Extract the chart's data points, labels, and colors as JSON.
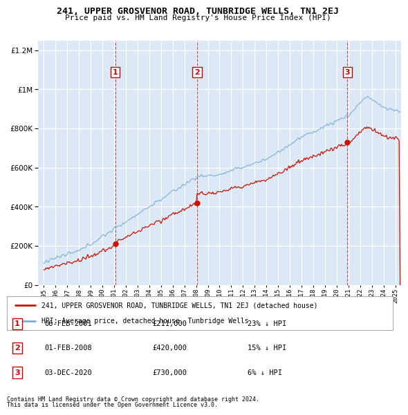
{
  "title": "241, UPPER GROSVENOR ROAD, TUNBRIDGE WELLS, TN1 2EJ",
  "subtitle": "Price paid vs. HM Land Registry's House Price Index (HPI)",
  "bg_color": "#ffffff",
  "plot_bg_color": "#dce8f5",
  "grid_color": "#ffffff",
  "hpi_color": "#7ab0d4",
  "price_color": "#cc1100",
  "vline_color": "#cc0000",
  "purchase_date_nums": [
    2001.09,
    2008.08,
    2020.92
  ],
  "purchase_prices_val": [
    211000,
    420000,
    730000
  ],
  "purchase_labels": [
    "1",
    "2",
    "3"
  ],
  "purchase_dates": [
    "06-FEB-2001",
    "01-FEB-2008",
    "03-DEC-2020"
  ],
  "purchase_prices": [
    "£211,000",
    "£420,000",
    "£730,000"
  ],
  "purchase_notes": [
    "23% ↓ HPI",
    "15% ↓ HPI",
    "6% ↓ HPI"
  ],
  "ylim": [
    0,
    1250000
  ],
  "xlim": [
    1994.5,
    2025.5
  ],
  "yticks": [
    0,
    200000,
    400000,
    600000,
    800000,
    1000000,
    1200000
  ],
  "legend_label_red": "241, UPPER GROSVENOR ROAD, TUNBRIDGE WELLS, TN1 2EJ (detached house)",
  "legend_label_blue": "HPI: Average price, detached house, Tunbridge Wells",
  "footer1": "Contains HM Land Registry data © Crown copyright and database right 2024.",
  "footer2": "This data is licensed under the Open Government Licence v3.0."
}
